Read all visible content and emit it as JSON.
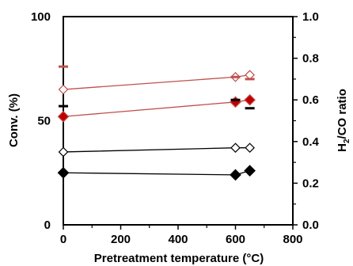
{
  "chart_data": {
    "type": "scatter",
    "xlabel": "Pretreatment  temperature (°C)",
    "ylabel_left": "Conv. (%)",
    "ylabel_right_parts": [
      "H",
      "2",
      "/CO ratio"
    ],
    "xlim": [
      0,
      800
    ],
    "ylim_left": [
      0,
      100
    ],
    "ylim_right": [
      0.0,
      1.0
    ],
    "x_ticks": [
      "0",
      "200",
      "400",
      "600",
      "800"
    ],
    "y_left_ticks": [
      "0",
      "50",
      "100"
    ],
    "y_right_ticks": [
      "0.0",
      "0.2",
      "0.4",
      "0.6",
      "0.8",
      "1.0"
    ],
    "series": [
      {
        "axis": "left",
        "color": "#c0504d",
        "marker": "diamond-open",
        "points": [
          [
            0,
            65
          ],
          [
            600,
            71
          ],
          [
            650,
            72
          ]
        ]
      },
      {
        "axis": "left",
        "color": "#c0504d",
        "marker": "diamond-filled",
        "fill": "#c00000",
        "points": [
          [
            0,
            52
          ],
          [
            600,
            59
          ],
          [
            650,
            60
          ]
        ]
      },
      {
        "axis": "left",
        "color": "#000000",
        "marker": "diamond-open",
        "points": [
          [
            0,
            35
          ],
          [
            600,
            37
          ],
          [
            650,
            37
          ]
        ]
      },
      {
        "axis": "left",
        "color": "#000000",
        "marker": "diamond-filled",
        "fill": "#000000",
        "points": [
          [
            0,
            25
          ],
          [
            600,
            24
          ],
          [
            650,
            26
          ]
        ]
      },
      {
        "axis": "right",
        "color": "#c0504d",
        "marker": "dash",
        "points": [
          [
            0,
            0.76
          ],
          [
            600,
            0.71
          ],
          [
            650,
            0.7
          ]
        ]
      },
      {
        "axis": "right",
        "color": "#000000",
        "marker": "dash",
        "points": [
          [
            0,
            0.57
          ],
          [
            600,
            0.6
          ],
          [
            650,
            0.56
          ]
        ]
      }
    ],
    "grid": false,
    "legend": "none"
  }
}
